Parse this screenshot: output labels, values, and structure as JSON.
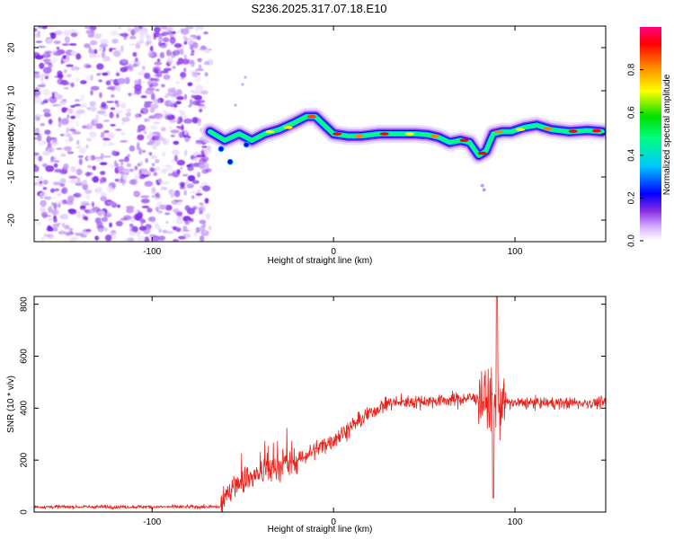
{
  "title": "S236.2025.317.07.18.E10",
  "colors": {
    "snr_line": "#e8211a",
    "scatter": "#7b22e8",
    "axes": "#000000"
  },
  "chart_data": [
    {
      "type": "heatmap",
      "name": "spectrogram",
      "xlabel": "Height of straight line (km)",
      "ylabel": "Frequency (Hz)",
      "xlim": [
        -165,
        150
      ],
      "ylim": [
        -25,
        25
      ],
      "xticks": [
        -100,
        0,
        100
      ],
      "yticks": [
        -20,
        -10,
        0,
        10,
        20
      ],
      "noise_region_x": [
        -165,
        -68
      ],
      "ridge_track": {
        "x": [
          -68,
          -60,
          -52,
          -45,
          -38,
          -30,
          -22,
          -15,
          -10,
          -5,
          0,
          8,
          15,
          25,
          35,
          45,
          52,
          58,
          64,
          70,
          75,
          80,
          84,
          88,
          93,
          98,
          105,
          112,
          120,
          130,
          140,
          148
        ],
        "freq": [
          0.5,
          -1.5,
          0,
          -1.5,
          0,
          1,
          2.5,
          4,
          4,
          2,
          0,
          -0.5,
          -0.5,
          0,
          0,
          0,
          -0.2,
          -0.8,
          -2,
          -1.5,
          -2,
          -5,
          -4,
          0,
          0.5,
          0.5,
          1.5,
          2,
          1,
          0.5,
          0.8,
          0.5
        ]
      },
      "colorbar": {
        "label": "Normalized spectral amplitude",
        "ticks": [
          "0.0",
          "0.2",
          "0.4",
          "0.6",
          "0.8"
        ],
        "range": [
          0,
          1
        ]
      }
    },
    {
      "type": "line",
      "name": "snr",
      "xlabel": "Height of straight line (km)",
      "ylabel": "SNR (10 * v/v)",
      "xlim": [
        -165,
        150
      ],
      "ylim": [
        0,
        830
      ],
      "xticks": [
        -100,
        0,
        100
      ],
      "yticks": [
        0,
        200,
        400,
        600,
        800
      ],
      "trend": {
        "x": [
          -165,
          -62,
          -55,
          -40,
          -20,
          0,
          20,
          30,
          60,
          78,
          85,
          88,
          90,
          92,
          95,
          100,
          120,
          150
        ],
        "y": [
          20,
          20,
          110,
          150,
          200,
          280,
          380,
          420,
          430,
          440,
          430,
          420,
          420,
          420,
          420,
          420,
          420,
          420
        ]
      },
      "peak": {
        "x": 90,
        "y": 830
      },
      "min_dip": {
        "x": 88,
        "y": 55
      }
    }
  ]
}
